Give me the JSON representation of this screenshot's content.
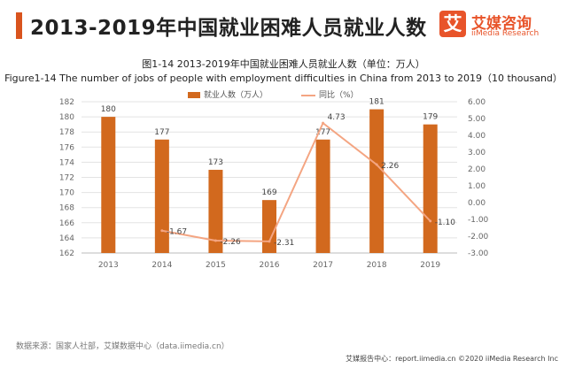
{
  "page": {
    "title": "2013-2019年中国就业困难人员就业人数",
    "logo_mark": "艾",
    "logo_name": "艾媒咨询",
    "logo_sub": "iiMedia Research",
    "source": "数据来源：国家人社部，艾媒数据中心（data.iimedia.cn）",
    "footer": "艾媒报告中心：report.iimedia.cn  ©2020  iiMedia Research  Inc"
  },
  "chart_data": {
    "type": "bar",
    "title_cn": "图1-14 2013-2019年中国就业困难人员就业人数（单位：万人）",
    "title_en": "Figure1-14 The number of jobs of people with employment difficulties in China from 2013 to 2019（10 thousand）",
    "categories": [
      "2013",
      "2014",
      "2015",
      "2016",
      "2017",
      "2018",
      "2019"
    ],
    "series": [
      {
        "name": "就业人数（万人）",
        "type": "bar",
        "axis": "left",
        "color": "#d2691e",
        "values": [
          180,
          177,
          173,
          169,
          177,
          181,
          179
        ]
      },
      {
        "name": "同比（%）",
        "type": "line",
        "axis": "right",
        "color": "#f4a582",
        "values": [
          null,
          -1.67,
          -2.26,
          -2.31,
          4.73,
          2.26,
          -1.1
        ]
      }
    ],
    "bar_labels": [
      "180",
      "177",
      "173",
      "169",
      "177",
      "181",
      "179"
    ],
    "line_labels": [
      "",
      "-1.67",
      "-2.26",
      "-2.31",
      "4.73",
      "2.26",
      "-1.10"
    ],
    "y_left": {
      "min": 162,
      "max": 182,
      "ticks": [
        "162",
        "164",
        "166",
        "168",
        "170",
        "172",
        "174",
        "176",
        "178",
        "180",
        "182"
      ]
    },
    "y_right": {
      "min": -3,
      "max": 6,
      "ticks": [
        "-3.00",
        "-2.00",
        "-1.00",
        "0.00",
        "1.00",
        "2.00",
        "3.00",
        "4.00",
        "5.00",
        "6.00"
      ]
    },
    "grid": true,
    "legend_position": "top"
  }
}
